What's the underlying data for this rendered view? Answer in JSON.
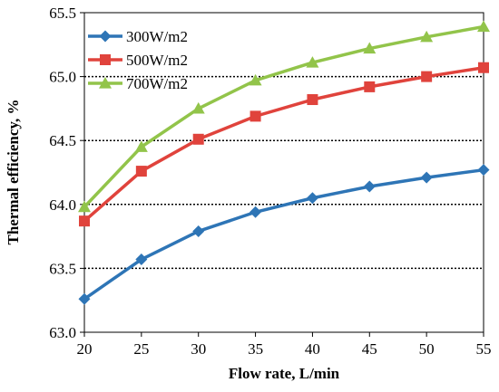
{
  "chart_data": {
    "type": "line",
    "xlabel": "Flow rate, L/min",
    "ylabel": "Thermal efficiency, %",
    "x": [
      20,
      25,
      30,
      35,
      40,
      45,
      50,
      55
    ],
    "xlim": [
      20,
      55
    ],
    "ylim": [
      63.0,
      65.5
    ],
    "x_ticks": [
      "20",
      "25",
      "30",
      "35",
      "40",
      "45",
      "50",
      "55"
    ],
    "y_ticks": [
      "63.0",
      "63.5",
      "64.0",
      "64.5",
      "65.0",
      "65.5"
    ],
    "grid": "horizontal dotted",
    "legend_position": "top-left",
    "series": [
      {
        "name": "300W/m2",
        "marker": "diamond",
        "color": "#2e75b6",
        "values": [
          63.26,
          63.57,
          63.79,
          63.94,
          64.05,
          64.14,
          64.21,
          64.27
        ]
      },
      {
        "name": "500W/m2",
        "marker": "square",
        "color": "#e0433c",
        "values": [
          63.87,
          64.26,
          64.51,
          64.69,
          64.82,
          64.92,
          65.0,
          65.07
        ]
      },
      {
        "name": "700W/m2",
        "marker": "triangle",
        "color": "#92c44a",
        "values": [
          63.98,
          64.45,
          64.75,
          64.97,
          65.11,
          65.22,
          65.31,
          65.39
        ]
      }
    ]
  }
}
